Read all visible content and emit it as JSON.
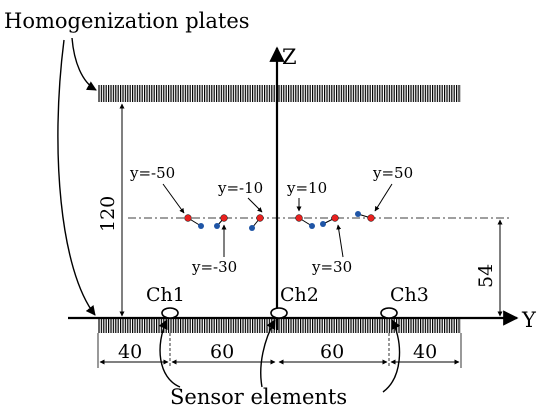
{
  "title_label": "Homogenization plates",
  "axes": {
    "z": "Z",
    "y": "Y"
  },
  "dimensions": {
    "height": "120",
    "offset": "54",
    "left": "40",
    "mid_left": "60",
    "mid_right": "60",
    "right": "40"
  },
  "channels": [
    "Ch1",
    "Ch2",
    "Ch3"
  ],
  "positions": [
    {
      "label": "y=-50"
    },
    {
      "label": "y=-30"
    },
    {
      "label": "y=-10"
    },
    {
      "label": "y=10"
    },
    {
      "label": "y=30"
    },
    {
      "label": "y=50"
    }
  ],
  "sensor_label": "Sensor elements",
  "colors": {
    "red_dot": "#e8211f",
    "blue_dot": "#1f55a6",
    "hatch": "#000000"
  }
}
